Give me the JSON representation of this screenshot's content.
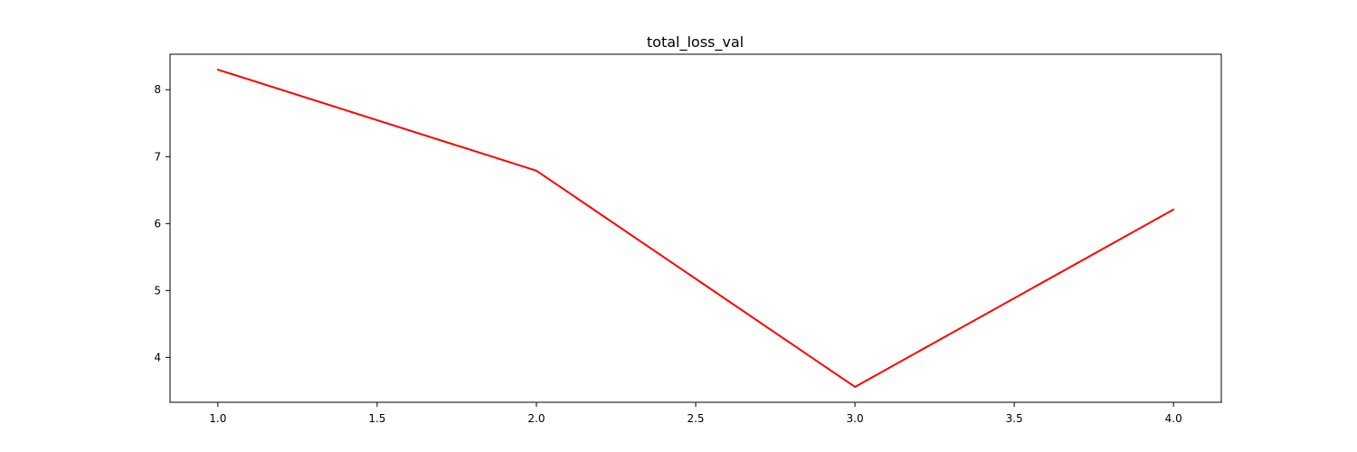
{
  "chart_data": {
    "type": "line",
    "title": "total_loss_val",
    "xlabel": "",
    "ylabel": "",
    "x": [
      1.0,
      2.0,
      3.0,
      4.0
    ],
    "series": [
      {
        "values": [
          8.3,
          6.79,
          3.56,
          6.21
        ],
        "color": "#ff0000"
      }
    ],
    "xlim": [
      0.85,
      4.15
    ],
    "ylim": [
      3.33,
      8.53
    ],
    "xticks": [
      1.0,
      1.5,
      2.0,
      2.5,
      3.0,
      3.5,
      4.0
    ],
    "xtick_labels": [
      "1.0",
      "1.5",
      "2.0",
      "2.5",
      "3.0",
      "3.5",
      "4.0"
    ],
    "yticks": [
      4,
      5,
      6,
      7,
      8
    ],
    "ytick_labels": [
      "4",
      "5",
      "6",
      "7",
      "8"
    ],
    "grid": false,
    "legend": "none"
  }
}
